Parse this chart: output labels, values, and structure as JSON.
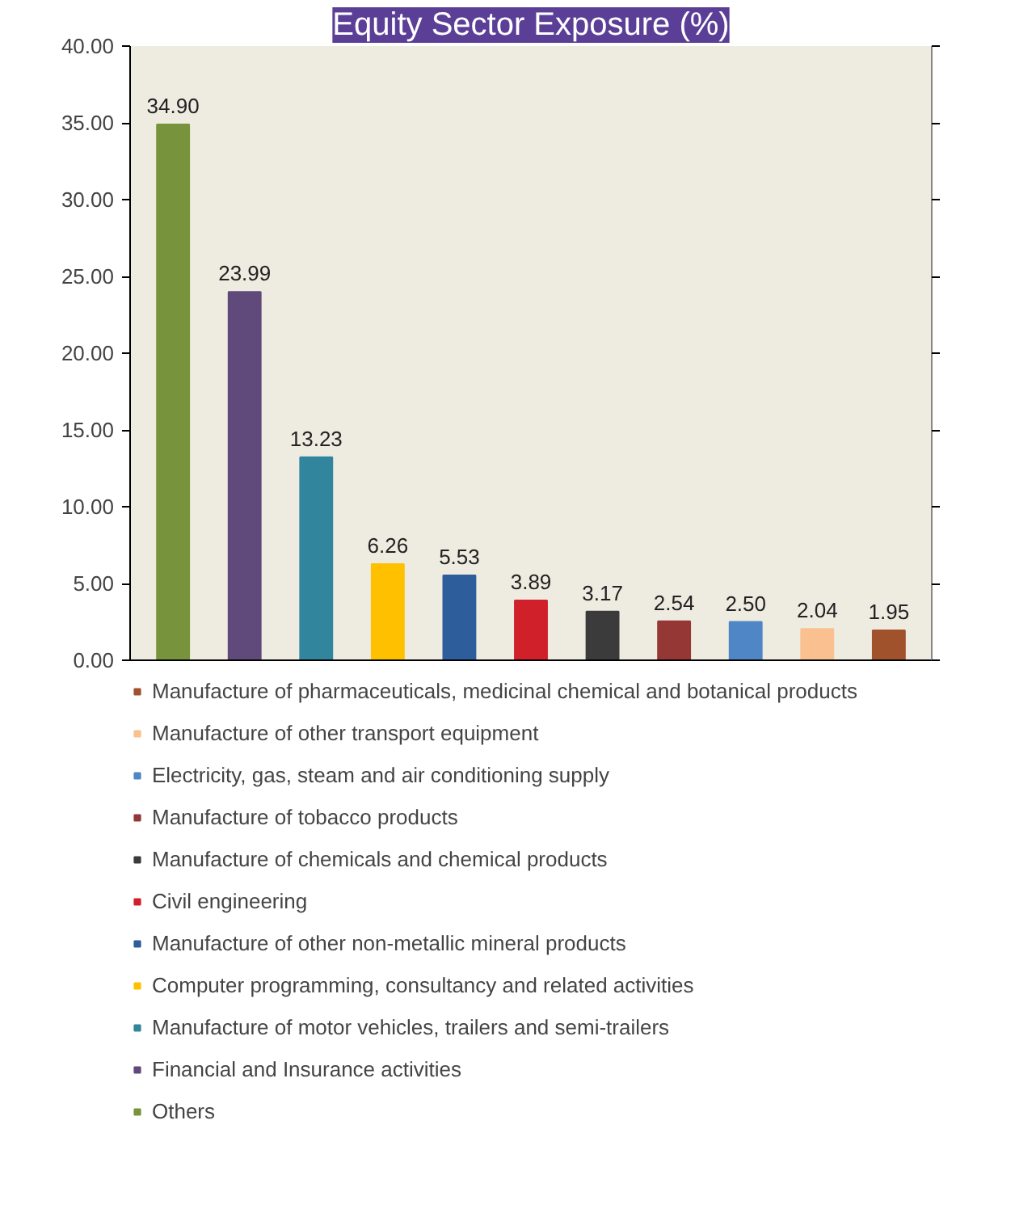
{
  "chart_data": {
    "type": "bar",
    "title": "Equity Sector Exposure (%)",
    "stacked": true,
    "categories": [
      null,
      null,
      null,
      null,
      null,
      null,
      null,
      null,
      null,
      null,
      null
    ],
    "series": [
      {
        "name": "Others",
        "color": "#77933c",
        "values": [
          34.9,
          null,
          null,
          null,
          null,
          null,
          null,
          null,
          null,
          null,
          null
        ],
        "value_labels": [
          "34.90",
          null,
          null,
          null,
          null,
          null,
          null,
          null,
          null,
          null,
          null
        ]
      },
      {
        "name": "Financial and Insurance activities",
        "color": "#604a7b",
        "values": [
          null,
          23.99,
          null,
          null,
          null,
          null,
          null,
          null,
          null,
          null,
          null
        ],
        "value_labels": [
          null,
          "23.99",
          null,
          null,
          null,
          null,
          null,
          null,
          null,
          null,
          null
        ]
      },
      {
        "name": "Manufacture of motor vehicles, trailers and semi-trailers",
        "color": "#31859c",
        "values": [
          null,
          null,
          13.23,
          null,
          null,
          null,
          null,
          null,
          null,
          null,
          null
        ],
        "value_labels": [
          null,
          null,
          "13.23",
          null,
          null,
          null,
          null,
          null,
          null,
          null,
          null
        ]
      },
      {
        "name": "Computer programming, consultancy and related activities",
        "color": "#ffc000",
        "values": [
          null,
          null,
          null,
          6.26,
          null,
          null,
          null,
          null,
          null,
          null,
          null
        ],
        "value_labels": [
          null,
          null,
          null,
          "6.26",
          null,
          null,
          null,
          null,
          null,
          null,
          null
        ]
      },
      {
        "name": "Manufacture of other non-metallic mineral products",
        "color": "#2e5d9c",
        "values": [
          null,
          null,
          null,
          null,
          5.53,
          null,
          null,
          null,
          null,
          null,
          null
        ],
        "value_labels": [
          null,
          null,
          null,
          null,
          "5.53",
          null,
          null,
          null,
          null,
          null,
          null
        ]
      },
      {
        "name": "Civil engineering",
        "color": "#d0202a",
        "values": [
          null,
          null,
          null,
          null,
          null,
          3.89,
          null,
          null,
          null,
          null,
          null
        ],
        "value_labels": [
          null,
          null,
          null,
          null,
          null,
          "3.89",
          null,
          null,
          null,
          null,
          null
        ]
      },
      {
        "name": "Manufacture of chemicals and chemical products",
        "color": "#3b3b3b",
        "values": [
          null,
          null,
          null,
          null,
          null,
          null,
          3.17,
          null,
          null,
          null,
          null
        ],
        "value_labels": [
          null,
          null,
          null,
          null,
          null,
          null,
          "3.17",
          null,
          null,
          null,
          null
        ]
      },
      {
        "name": "Manufacture of tobacco products",
        "color": "#953735",
        "values": [
          null,
          null,
          null,
          null,
          null,
          null,
          null,
          2.54,
          null,
          null,
          null
        ],
        "value_labels": [
          null,
          null,
          null,
          null,
          null,
          null,
          null,
          "2.54",
          null,
          null,
          null
        ]
      },
      {
        "name": "Electricity, gas, steam and air conditioning supply",
        "color": "#4f86c6",
        "values": [
          null,
          null,
          null,
          null,
          null,
          null,
          null,
          null,
          2.5,
          null,
          null
        ],
        "value_labels": [
          null,
          null,
          null,
          null,
          null,
          null,
          null,
          null,
          "2.50",
          null,
          null
        ]
      },
      {
        "name": "Manufacture of other transport equipment",
        "color": "#fac090",
        "values": [
          null,
          null,
          null,
          null,
          null,
          null,
          null,
          null,
          null,
          2.04,
          null
        ],
        "value_labels": [
          null,
          null,
          null,
          null,
          null,
          null,
          null,
          null,
          null,
          "2.04",
          null
        ]
      },
      {
        "name": "Manufacture of pharmaceuticals, medicinal chemical and botanical products",
        "color": "#a0522d",
        "values": [
          null,
          null,
          null,
          null,
          null,
          null,
          null,
          null,
          null,
          null,
          1.95
        ],
        "value_labels": [
          null,
          null,
          null,
          null,
          null,
          null,
          null,
          null,
          null,
          null,
          "1.95"
        ]
      }
    ],
    "ylim": [
      0,
      40
    ],
    "yticks": [
      {
        "value": 0,
        "label": "0.00"
      },
      {
        "value": 5,
        "label": "5.00"
      },
      {
        "value": 10,
        "label": "10.00"
      },
      {
        "value": 15,
        "label": "15.00"
      },
      {
        "value": 20,
        "label": "20.00"
      },
      {
        "value": 25,
        "label": "25.00"
      },
      {
        "value": 30,
        "label": "30.00"
      },
      {
        "value": 35,
        "label": "35.00"
      },
      {
        "value": 40,
        "label": "40.00"
      }
    ],
    "grid": false,
    "legend": "bottom"
  }
}
